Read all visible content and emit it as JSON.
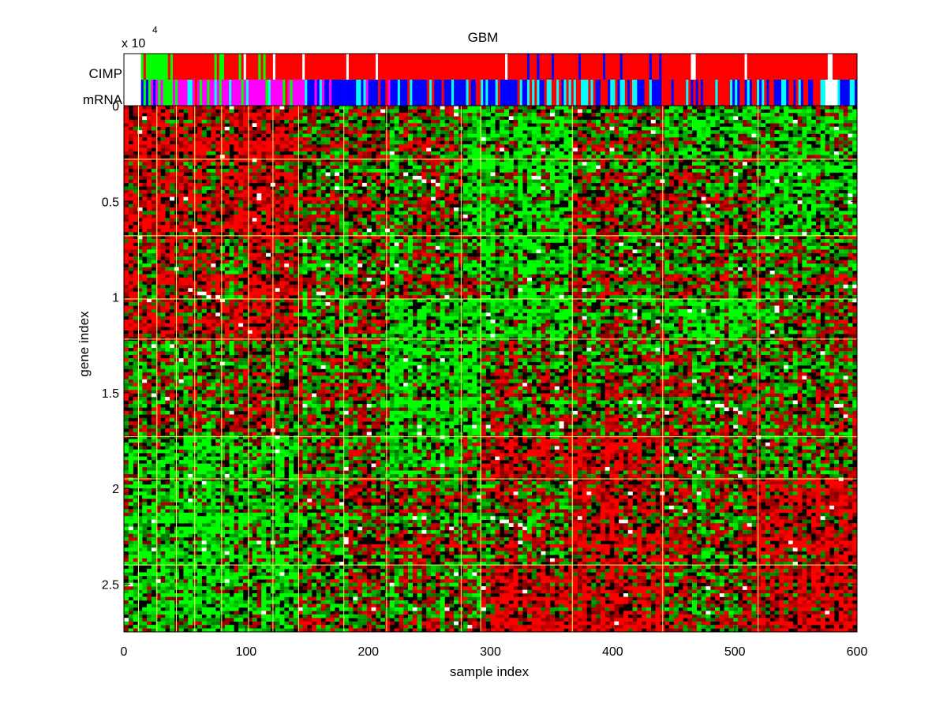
{
  "chart_data": {
    "type": "heatmap",
    "title": "GBM",
    "xlabel": "sample index",
    "ylabel": "gene index",
    "xlim": [
      0,
      600
    ],
    "ylim": [
      0,
      27500
    ],
    "y_reversed": true,
    "y_multiplier_label": "x 10",
    "y_multiplier_exponent": "4",
    "x_ticks": [
      {
        "value": 0,
        "label": "0"
      },
      {
        "value": 100,
        "label": "100"
      },
      {
        "value": 200,
        "label": "200"
      },
      {
        "value": 300,
        "label": "300"
      },
      {
        "value": 400,
        "label": "400"
      },
      {
        "value": 500,
        "label": "500"
      },
      {
        "value": 600,
        "label": "600"
      }
    ],
    "y_ticks": [
      {
        "value": 0,
        "label": "0"
      },
      {
        "value": 5000,
        "label": "0.5"
      },
      {
        "value": 10000,
        "label": "1"
      },
      {
        "value": 15000,
        "label": "1.5"
      },
      {
        "value": 20000,
        "label": "2"
      },
      {
        "value": 25000,
        "label": "2.5"
      }
    ],
    "annotation_tracks": [
      {
        "label": "CIMP"
      },
      {
        "label": "mRNA"
      }
    ],
    "colors": {
      "high": "#ff0000",
      "low": "#00ff00",
      "mid": "#000000",
      "missing": "#ffffff",
      "boundary_lines": "#ffff66",
      "track_red": "#ff0000",
      "track_green": "#00ff00",
      "track_magenta": "#ff00ff",
      "track_blue": "#0000ff",
      "track_cyan": "#00ffff",
      "track_white": "#ffffff"
    },
    "sample_cluster_boundaries": [
      12,
      27,
      43,
      58,
      80,
      102,
      122,
      143,
      180,
      215,
      276,
      292,
      367,
      441,
      519
    ],
    "gene_cluster_boundaries": [
      2800,
      6800,
      10100,
      12200,
      17300,
      19500,
      24000
    ],
    "block_pattern": [
      [
        1,
        1,
        1,
        1,
        1,
        1,
        1,
        1,
        0,
        0,
        0,
        -1,
        -1,
        0,
        -1,
        -1
      ],
      [
        1,
        1,
        1,
        1,
        1,
        1,
        1,
        1,
        0,
        0,
        0,
        -1,
        -1,
        0,
        0,
        -1
      ],
      [
        1,
        0,
        1,
        1,
        1,
        0,
        1,
        1,
        0,
        0,
        0,
        0,
        -1,
        0,
        0,
        0
      ],
      [
        1,
        1,
        1,
        1,
        1,
        1,
        1,
        1,
        0,
        0,
        -1,
        -1,
        -1,
        0,
        -1,
        0
      ],
      [
        0,
        0,
        0,
        0,
        0,
        0,
        0,
        0,
        0,
        0,
        -1,
        -1,
        0,
        0,
        0,
        0
      ],
      [
        -1,
        -1,
        -1,
        -1,
        -1,
        -1,
        -1,
        -1,
        0,
        0,
        -1,
        0,
        1,
        1,
        0,
        0
      ],
      [
        -1,
        -1,
        -1,
        -1,
        -1,
        -1,
        -1,
        -1,
        0,
        0,
        0,
        0,
        0,
        1,
        0,
        1
      ],
      [
        -1,
        -1,
        -1,
        -1,
        -1,
        -1,
        -1,
        -1,
        0,
        0,
        0,
        0,
        1,
        1,
        0,
        1
      ]
    ]
  }
}
